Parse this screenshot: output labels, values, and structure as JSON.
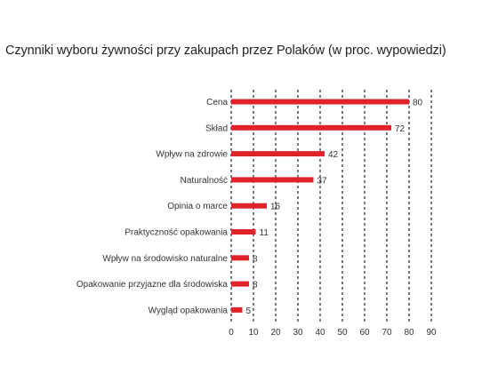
{
  "chart_data": {
    "type": "bar",
    "orientation": "horizontal",
    "title": "Czynniki wyboru żywności przy zakupach przez Polaków (w proc. wypowiedzi)",
    "categories": [
      "Cena",
      "Skład",
      "Wpływ na zdrowie",
      "Naturalność",
      "Opinia o marce",
      "Praktyczność opakowania",
      "Wpływ na środowisko naturalne",
      "Opakowanie przyjazne dla środowiska",
      "Wygląd opakowania"
    ],
    "values": [
      80,
      72,
      42,
      37,
      16,
      11,
      8,
      8,
      5
    ],
    "value_labels": [
      "80",
      "72",
      "42",
      "37",
      "16",
      "11",
      "8",
      "8",
      "5"
    ],
    "xlim": [
      0,
      90
    ],
    "xticks": [
      "0",
      "10",
      "20",
      "30",
      "40",
      "50",
      "60",
      "70",
      "80",
      "90"
    ],
    "xtick_values": [
      0,
      10,
      20,
      30,
      40,
      50,
      60,
      70,
      80,
      90
    ],
    "grid": "dashed-vertical",
    "bar_color": "#e0232b",
    "grid_color": "#222222"
  }
}
